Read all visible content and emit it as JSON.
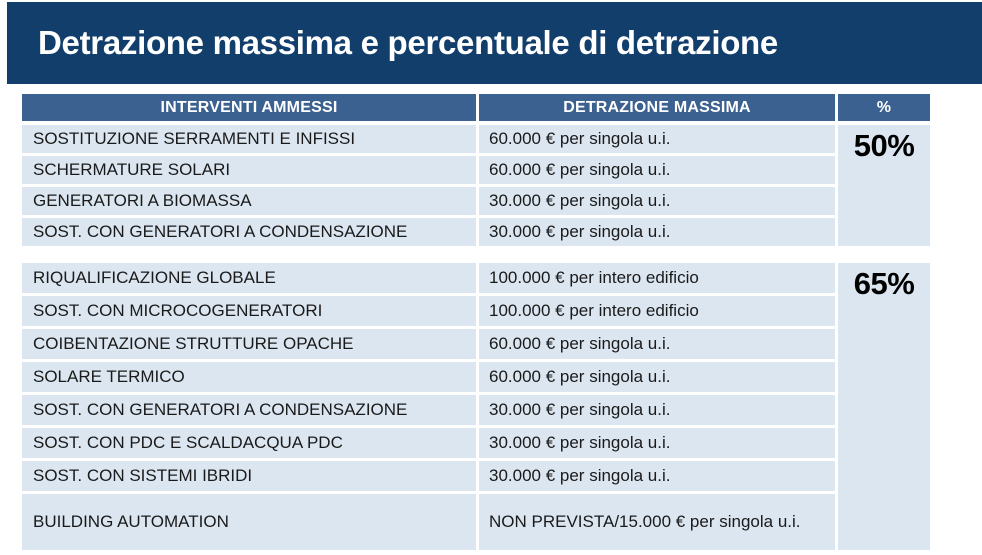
{
  "title": "Detrazione massima e percentuale di detrazione",
  "table": {
    "headers": [
      "INTERVENTI AMMESSI",
      "DETRAZIONE MASSIMA",
      "%"
    ],
    "groups": [
      {
        "percent": "50%",
        "rows": [
          {
            "intervento": "SOSTITUZIONE SERRAMENTI E INFISSI",
            "detrazione": "60.000 € per singola u.i."
          },
          {
            "intervento": "SCHERMATURE SOLARI",
            "detrazione": "60.000 € per singola u.i."
          },
          {
            "intervento": "GENERATORI A BIOMASSA",
            "detrazione": "30.000 € per singola u.i."
          },
          {
            "intervento": "SOST. CON GENERATORI A CONDENSAZIONE",
            "detrazione": "30.000 € per singola u.i."
          }
        ]
      },
      {
        "percent": "65%",
        "rows": [
          {
            "intervento": "RIQUALIFICAZIONE GLOBALE",
            "detrazione": "100.000 € per intero edificio"
          },
          {
            "intervento": "SOST. CON MICROCOGENERATORI",
            "detrazione": "100.000 € per intero edificio"
          },
          {
            "intervento": "COIBENTAZIONE STRUTTURE OPACHE",
            "detrazione": "60.000 € per singola u.i."
          },
          {
            "intervento": "SOLARE TERMICO",
            "detrazione": "60.000 € per singola u.i."
          },
          {
            "intervento": "SOST. CON GENERATORI A CONDENSAZIONE",
            "detrazione": "30.000 € per singola u.i."
          },
          {
            "intervento": "SOST. CON PDC E SCALDACQUA PDC",
            "detrazione": "30.000 € per singola u.i."
          },
          {
            "intervento": "SOST. CON SISTEMI IBRIDI",
            "detrazione": "30.000 € per singola u.i."
          },
          {
            "intervento": "BUILDING AUTOMATION",
            "detrazione": "NON PREVISTA/15.000 € per singola u.i."
          }
        ]
      }
    ]
  },
  "colors": {
    "banner_blue": "#123e6c",
    "header_blue": "#3b6191",
    "row_light_blue": "#dce6f1",
    "header_text": "#ffffff",
    "body_text": "#1a1a1a"
  }
}
